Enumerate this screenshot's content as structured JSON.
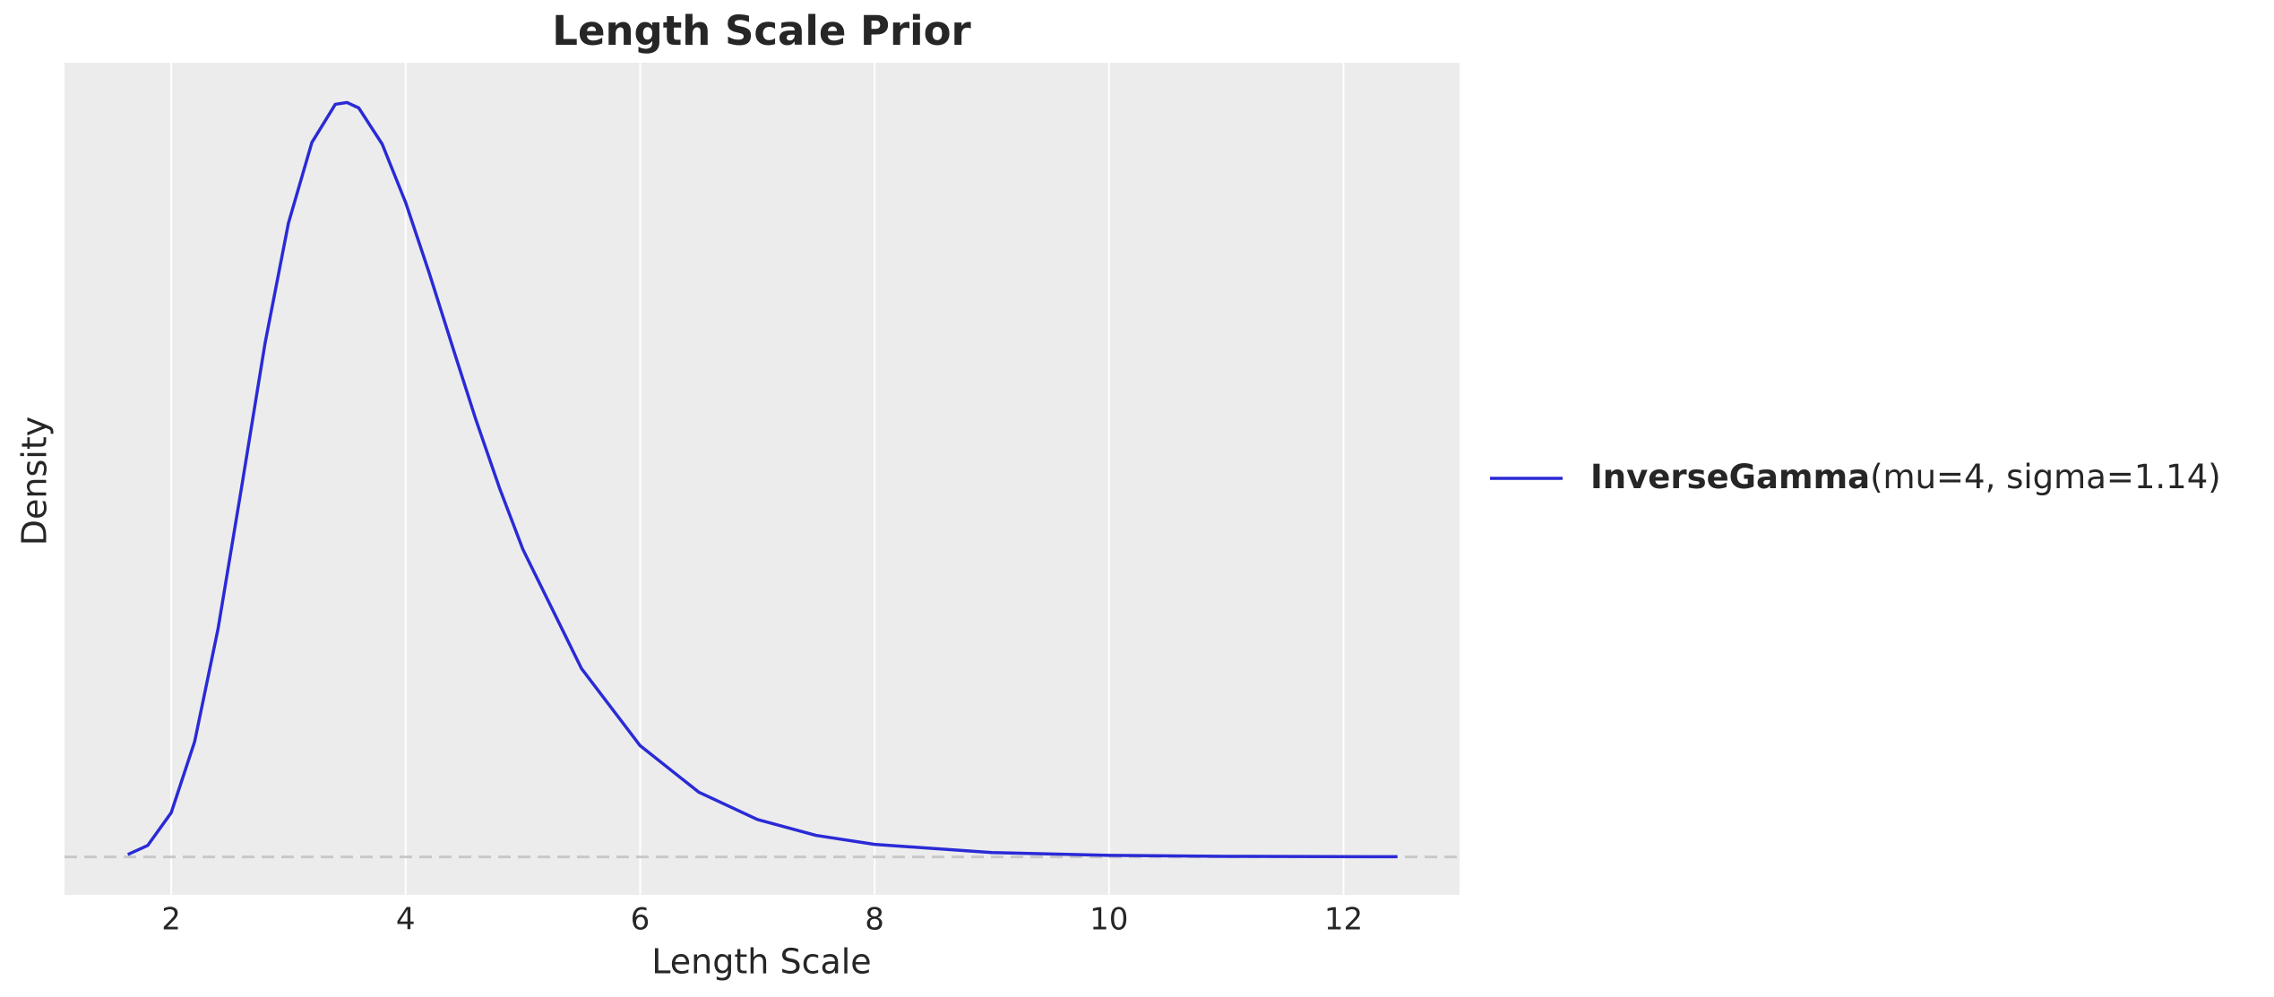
{
  "chart_data": {
    "type": "line",
    "title": "Length Scale Prior",
    "xlabel": "Length Scale",
    "ylabel": "Density",
    "x": [
      1.63,
      1.8,
      2.0,
      2.2,
      2.4,
      2.6,
      2.8,
      3.0,
      3.2,
      3.4,
      3.5,
      3.6,
      3.8,
      4.0,
      4.2,
      4.4,
      4.6,
      4.8,
      5.0,
      5.5,
      6.0,
      6.5,
      7.0,
      7.5,
      8.0,
      9.0,
      10.0,
      11.0,
      12.46
    ],
    "series": [
      {
        "name": "InverseGamma",
        "params": "(mu=4, sigma=1.14)",
        "color": "#2a2ad6",
        "values": [
          0.00132,
          0.00634,
          0.0244,
          0.0637,
          0.1262,
          0.2041,
          0.2837,
          0.3503,
          0.3949,
          0.416,
          0.417,
          0.414,
          0.394,
          0.3617,
          0.323,
          0.282,
          0.2415,
          0.204,
          0.17,
          0.1041,
          0.0615,
          0.0358,
          0.0207,
          0.0119,
          0.0069,
          0.0024,
          0.00086,
          0.00032,
          8.5e-05
        ]
      }
    ],
    "xlim": [
      1.09,
      12.99
    ],
    "ylim": [
      -0.021,
      0.439
    ],
    "xticks": [
      2,
      4,
      6,
      8,
      10,
      12
    ],
    "hline": 0,
    "grid": true,
    "legend": "right"
  }
}
